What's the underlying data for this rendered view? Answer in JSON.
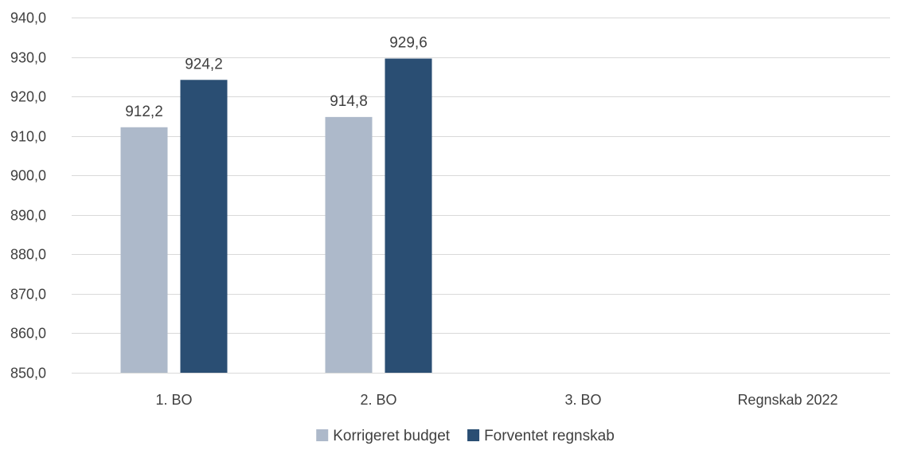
{
  "chart_data": {
    "type": "bar",
    "categories": [
      "1. BO",
      "2. BO",
      "3. BO",
      "Regnskab 2022"
    ],
    "series": [
      {
        "name": "Korrigeret budget",
        "values": [
          912.2,
          914.8,
          null,
          null
        ],
        "labels": [
          "912,2",
          "914,8",
          "",
          ""
        ],
        "color": "#adb9ca"
      },
      {
        "name": "Forventet regnskab",
        "values": [
          924.2,
          929.6,
          null,
          null
        ],
        "labels": [
          "924,2",
          "929,6",
          "",
          ""
        ],
        "color": "#2a4e73"
      }
    ],
    "ylim": [
      850,
      940
    ],
    "yticks": [
      850,
      860,
      870,
      880,
      890,
      900,
      910,
      920,
      930,
      940
    ],
    "ytick_labels": [
      "850,0",
      "860,0",
      "870,0",
      "880,0",
      "890,0",
      "900,0",
      "910,0",
      "920,0",
      "930,0",
      "940,0"
    ],
    "title": "",
    "xlabel": "",
    "ylabel": "",
    "grid": true,
    "legend_position": "bottom"
  }
}
